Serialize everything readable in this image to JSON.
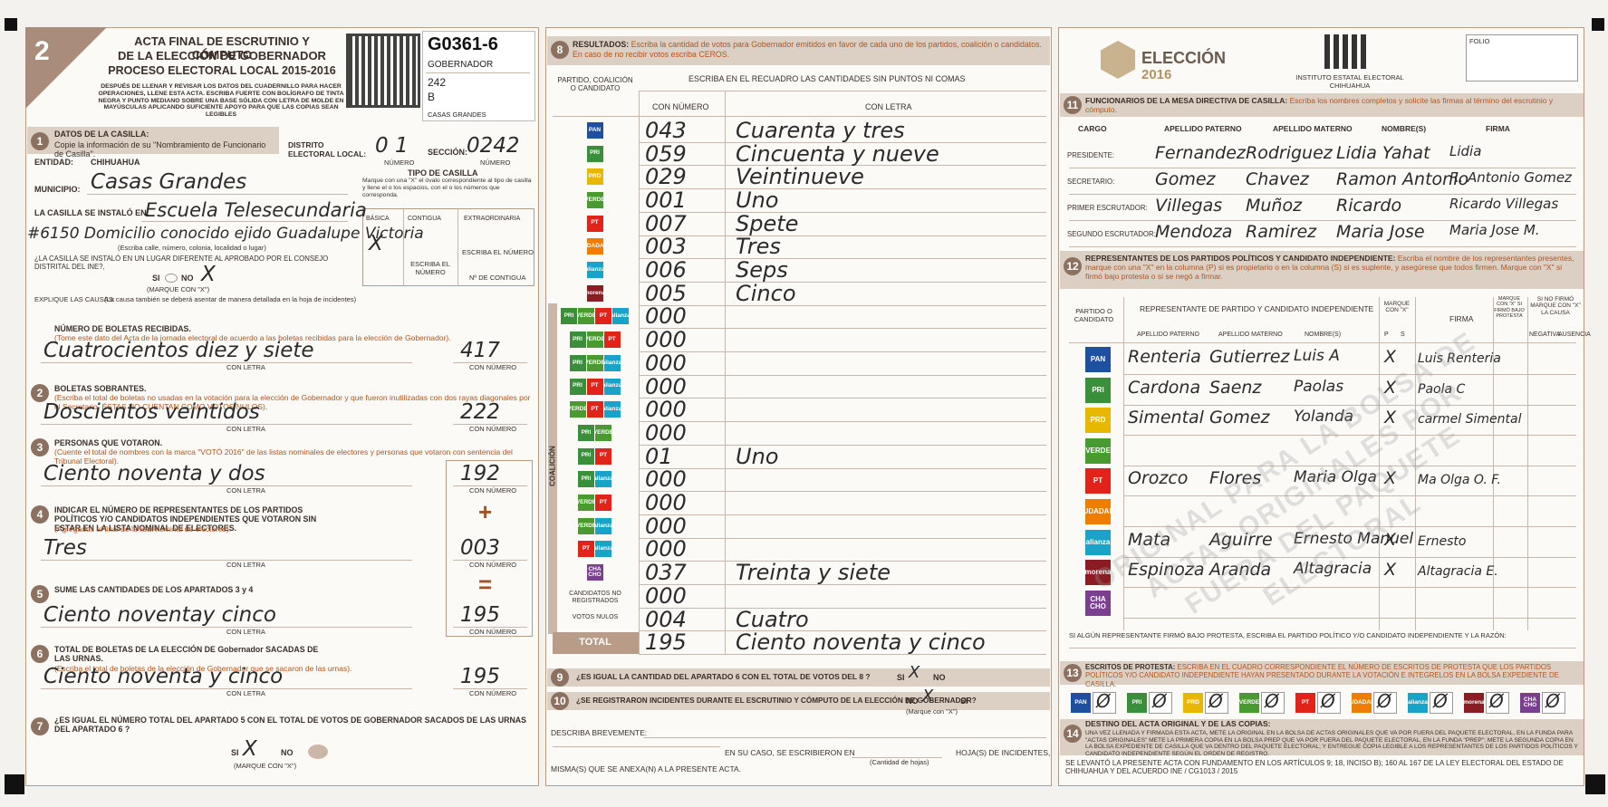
{
  "header": {
    "number": "2",
    "title": "ACTA FINAL DE ESCRUTINIO Y CÓMPUTO",
    "title2": "DE LA ELECCIÓN DE GOBERNADOR",
    "subtitle": "PROCESO ELECTORAL LOCAL 2015-2016",
    "instructions": "DESPUÉS DE LLENAR Y REVISAR LOS DATOS DEL CUADERNILLO PARA HACER OPERACIONES, LLENE ESTA ACTA. ESCRIBA FUERTE CON BOLÍGRAFO DE TINTA NEGRA Y PUNTO MEDIANO SOBRE UNA BASE SÓLIDA CON LETRA DE MOLDE EN MAYÚSCULAS APLICANDO SUFICIENTE APOYO PARA QUE LAS COPIAS SEAN LEGIBLES",
    "code": "G0361-6",
    "election": "GOBERNADOR",
    "section": "242",
    "type": "B",
    "municipality": "CASAS GRANDES"
  },
  "casilla": {
    "number": "1",
    "heading": "DATOS DE LA CASILLA:",
    "instruction": "Copie la información de su \"Nombramiento de Funcionario de Casilla\".",
    "entity_label": "ENTIDAD:",
    "entity": "CHIHUAHUA",
    "district_label": "DISTRITO ELECTORAL LOCAL:",
    "district": "0 1",
    "number_caption": "NÚMERO",
    "section_label": "SECCIÓN:",
    "section": "0242",
    "municipality_label": "MUNICIPIO:",
    "municipality": "Casas Grandes",
    "location_label": "LA CASILLA SE INSTALÓ EN:",
    "location": "Escuela Telesecundaria",
    "address": "#6150 Domicilio conocido ejido Guadalupe Victoria",
    "address_caption": "(Escriba calle, número, colonia, localidad o lugar)",
    "different_place": "¿LA CASILLA SE INSTALÓ EN UN LUGAR DIFERENTE AL APROBADO POR EL CONSEJO DISTRITAL DEL INE?,",
    "yes": "SI",
    "no": "NO",
    "no_mark": "X",
    "mark_caption": "(MARQUE CON \"X\")",
    "explain": "EXPLIQUE LAS CAUSAS:",
    "explain_note": "(La causa también se deberá asentar de manera detallada en la hoja de incidentes)",
    "type_heading": "TIPO DE CASILLA",
    "type_instruction": "Marque con una \"X\" el óvalo correspondiente al tipo de casilla y llene el o los espacios, con el o los números que corresponda.",
    "types": [
      "BÁSICA",
      "CONTIGUA",
      "EXTRAORDINARIA"
    ],
    "type_mark": "X",
    "write_number": "ESCRIBA EL NÚMERO",
    "contigua_number": "Nº DE CONTIGUA"
  },
  "counts": [
    {
      "heading": "NÚMERO DE BOLETAS RECIBIDAS.",
      "note": "(Tome este dato del Acta de la jornada electoral de acuerdo a las boletas recibidas para la elección de Gobernador).",
      "words": "Cuatrocientos diez y siete",
      "digits": "417"
    },
    {
      "number": "2",
      "heading": "BOLETAS SOBRANTES.",
      "note": "(Escriba el total de boletas no usadas en la votación para la elección de Gobernador y que fueron inutilizadas con dos rayas diagonales por el Secretario, ÉSTAS NO CUENTAN COMO VOTOS NULOS).",
      "words": "Doscientos veintidos",
      "digits": "222"
    },
    {
      "number": "3",
      "heading": "PERSONAS QUE VOTARON.",
      "note": "(Cuente el total de nombres con la marca \"VOTÓ 2016\" de las listas nominales de electores y personas que votaron con sentencia del Tribunal Electoral).",
      "words": "Ciento noventa y dos",
      "digits": "192"
    },
    {
      "number": "4",
      "heading": "INDICAR EL NÚMERO DE REPRESENTANTES DE LOS PARTIDOS POLÍTICOS Y/O CANDIDATOS INDEPENDIENTES QUE VOTARON SIN ESTAR EN LA LISTA NOMINAL DE ELECTORES.",
      "note": "(Agregados al final de la lista nominal de electores).",
      "words": "Tres",
      "digits": "003"
    },
    {
      "number": "5",
      "heading": "SUME LAS CANTIDADES DE LOS APARTADOS 3 y 4",
      "words": "Ciento noventay cinco",
      "digits": "195"
    },
    {
      "number": "6",
      "heading": "TOTAL DE BOLETAS DE LA ELECCIÓN DE Gobernador SACADAS DE LAS URNAS.",
      "note": "(Escriba el total de boletas de la elección de Gobernador que se sacaron de las urnas).",
      "words": "Ciento noventa y cinco",
      "digits": "195"
    }
  ],
  "captions": {
    "words": "CON LETRA",
    "digits": "CON NÚMERO",
    "plus": "+",
    "equals": "="
  },
  "check7": {
    "number": "7",
    "question": "¿ES IGUAL EL NÚMERO TOTAL DEL APARTADO 5 CON EL TOTAL DE VOTOS DE GOBERNADOR SACADOS DE LAS URNAS DEL APARTADO 6 ?",
    "yes": "SI",
    "yes_mark": "X",
    "no": "NO",
    "mark_caption": "(MARQUE CON \"X\")"
  },
  "results": {
    "number": "8",
    "heading": "RESULTADOS:",
    "instruction": "Escriba la cantidad de votos para Gobernador emitidos en favor de cada uno de los partidos, coalición o candidatos. En caso de no recibir votos escriba CEROS.",
    "col_party": "PARTIDO, COALICIÓN O CANDIDATO",
    "col_write": "ESCRIBA EN EL RECUADRO LAS CANTIDADES SIN PUNTOS NI COMAS",
    "col_number": "CON NÚMERO",
    "col_words": "CON LETRA",
    "coalition": "COALICIÓN",
    "rows": [
      {
        "logos": [
          "PAN"
        ],
        "number": "043",
        "words": "Cuarenta y tres"
      },
      {
        "logos": [
          "PRI"
        ],
        "number": "059",
        "words": "Cincuenta y nueve"
      },
      {
        "logos": [
          "PRD"
        ],
        "number": "029",
        "words": "Veintinueve"
      },
      {
        "logos": [
          "VERDE"
        ],
        "number": "001",
        "words": "Uno"
      },
      {
        "logos": [
          "PT"
        ],
        "number": "007",
        "words": "Spete"
      },
      {
        "logos": [
          "CIUDADANO"
        ],
        "number": "003",
        "words": "Tres"
      },
      {
        "logos": [
          "alianza"
        ],
        "number": "006",
        "words": "Seps"
      },
      {
        "logos": [
          "morena"
        ],
        "number": "005",
        "words": "Cinco"
      },
      {
        "logos": [
          "PRI",
          "VERDE",
          "PT",
          "alianza"
        ],
        "number": "000"
      },
      {
        "logos": [
          "PRI",
          "VERDE",
          "PT"
        ],
        "number": "000"
      },
      {
        "logos": [
          "PRI",
          "VERDE",
          "alianza"
        ],
        "number": "000"
      },
      {
        "logos": [
          "PRI",
          "PT",
          "alianza"
        ],
        "number": "000"
      },
      {
        "logos": [
          "VERDE",
          "PT",
          "alianza"
        ],
        "number": "000"
      },
      {
        "logos": [
          "PRI",
          "VERDE"
        ],
        "number": "000"
      },
      {
        "logos": [
          "PRI",
          "PT"
        ],
        "number": "01",
        "words": "Uno"
      },
      {
        "logos": [
          "PRI",
          "alianza"
        ],
        "number": "000"
      },
      {
        "logos": [
          "VERDE",
          "PT"
        ],
        "number": "000"
      },
      {
        "logos": [
          "VERDE",
          "alianza"
        ],
        "number": "000"
      },
      {
        "logos": [
          "PT",
          "alianza"
        ],
        "number": "000"
      },
      {
        "logos": [
          "CHA CHO"
        ],
        "number": "037",
        "words": "Treinta y siete"
      },
      {
        "label": "CANDIDATOS NO REGISTRADOS",
        "number": "000"
      },
      {
        "label": "VOTOS NULOS",
        "number": "004",
        "words": "Cuatro"
      },
      {
        "label": "TOTAL",
        "number": "195",
        "words": "Ciento noventa y cinco"
      }
    ]
  },
  "logo_colors": {
    "PAN": "#1f4fa0",
    "PRI": "#3a8f3a",
    "PRD": "#e8b800",
    "VERDE": "#4a9b2f",
    "PT": "#e2231a",
    "CIUDADANO": "#ef7d00",
    "alianza": "#1aa3c9",
    "morena": "#8b1c24",
    "CHA CHO": "#7a3f8f"
  },
  "check9": {
    "number": "9",
    "question": "¿ES IGUAL LA CANTIDAD DEL APARTADO 6 CON EL TOTAL DE VOTOS DEL 8 ?",
    "yes": "SI",
    "yes_mark": "X",
    "no": "NO"
  },
  "check10": {
    "number": "10",
    "question": "¿SE REGISTRARON INCIDENTES DURANTE EL ESCRUTINIO Y CÓMPUTO DE LA ELECCIÓN DE GOBERNADOR?",
    "no": "NO",
    "no_mark": "X",
    "yes": "SI",
    "mark_caption": "(Marque con \"X\")",
    "describe": "DESCRIBA BREVEMENTE:",
    "sheets": "EN SU CASO, SE ESCRIBIERON EN",
    "sheets_caption": "(Cantidad de hojas)",
    "sheets_after": "HOJA(S) DE INCIDENTES,",
    "annex": "MISMA(S) QUE SE ANEXA(N) A LA PRESENTE ACTA."
  },
  "brand": {
    "election": "ELECCIÓN",
    "year": "2016",
    "institute": "INSTITUTO ESTATAL ELECTORAL CHIHUAHUA",
    "folio": "FOLIO"
  },
  "officials": {
    "number": "11",
    "heading": "FUNCIONARIOS DE LA MESA DIRECTIVA DE CASILLA:",
    "instruction": "Escriba los nombres completos y solicite las firmas al término del escrutinio y cómputo.",
    "columns": [
      "CARGO",
      "APELLIDO PATERNO",
      "APELLIDO MATERNO",
      "NOMBRE(S)",
      "FIRMA"
    ],
    "rows": [
      [
        "PRESIDENTE:",
        "Fernandez",
        "Rodriguez",
        "Lidia Yahat",
        "Lidia"
      ],
      [
        "SECRETARIO:",
        "Gomez",
        "Chavez",
        "Ramon Antonio",
        "R. Antonio Gomez"
      ],
      [
        "PRIMER ESCRUTADOR:",
        "Villegas",
        "Muñoz",
        "Ricardo",
        "Ricardo Villegas"
      ],
      [
        "SEGUNDO ESCRUTADOR:",
        "Mendoza",
        "Ramirez",
        "Maria Jose",
        "Maria Jose M."
      ]
    ]
  },
  "representatives": {
    "number": "12",
    "heading": "REPRESENTANTES DE LOS PARTIDOS POLÍTICOS Y CANDIDATO INDEPENDIENTE:",
    "instruction": "Escriba el nombre de los representantes presentes, marque con una \"X\" en la columna (P) si es propietario o en la columna (S) si es suplente, y asegúrese que todos firmen. Marque con \"X\" si firmó bajo protesta o si se negó a firmar.",
    "col_party": "PARTIDO O CANDIDATO",
    "col_rep": "REPRESENTANTE DE PARTIDO Y CANDIDATO INDEPENDIENTE",
    "col_mark": "MARQUE CON \"X\"",
    "col_sign": "FIRMA",
    "col_protest": "MARQUE CON \"X\" SI FIRMÓ BAJO PROTESTA",
    "col_refused": "SI NO FIRMÓ MARQUE CON \"X\" LA CAUSA",
    "sub": [
      "APELLIDO PATERNO",
      "APELLIDO MATERNO",
      "NOMBRE(S)",
      "P",
      "S",
      "NEGATIVA",
      "AUSENCIA"
    ],
    "rows": [
      {
        "logo": "PAN",
        "paterno": "Renteria",
        "materno": "Gutierrez",
        "nombre": "Luis A",
        "mark": "X",
        "firma": "Luis Renteria"
      },
      {
        "logo": "PRI",
        "paterno": "Cardona",
        "materno": "Saenz",
        "nombre": "Paolas",
        "mark": "X",
        "firma": "Paola C"
      },
      {
        "logo": "PRD",
        "paterno": "Simental",
        "materno": "Gomez",
        "nombre": "Yolanda",
        "mark": "X",
        "firma": "carmel Simental"
      },
      {
        "logo": "VERDE"
      },
      {
        "logo": "PT",
        "paterno": "Orozco",
        "materno": "Flores",
        "nombre": "Maria Olga",
        "mark": "X",
        "firma": "Ma Olga O. F."
      },
      {
        "logo": "CIUDADANO"
      },
      {
        "logo": "alianza",
        "paterno": "Mata",
        "materno": "Aguirre",
        "nombre": "Ernesto Manuel",
        "mark": "X",
        "firma": "Ernesto"
      },
      {
        "logo": "morena",
        "paterno": "Espinoza",
        "materno": "Aranda",
        "nombre": "Altagracia",
        "mark": "X",
        "firma": "Altagracia E."
      },
      {
        "logo": "CHA CHO"
      }
    ],
    "protest_note": "SI ALGÚN REPRESENTANTE FIRMÓ BAJO PROTESTA, ESCRIBA EL PARTIDO POLÍTICO Y/O CANDIDATO INDEPENDIENTE Y LA RAZÓN:"
  },
  "protests": {
    "number": "13",
    "heading": "ESCRITOS DE PROTESTA:",
    "instruction": "ESCRIBA EN EL CUADRO CORRESPONDIENTE EL NÚMERO DE ESCRITOS DE PROTESTA QUE LOS PARTIDOS POLÍTICOS Y/O CANDIDATO INDEPENDIENTE HAYAN PRESENTADO DURANTE LA VOTACIÓN E INTEGRELOS EN LA BOLSA EXPEDIENTE DE CASILLA.",
    "entries": [
      {
        "logo": "PAN",
        "value": "Ø"
      },
      {
        "logo": "PRI",
        "value": "Ø"
      },
      {
        "logo": "PRD",
        "value": "Ø"
      },
      {
        "logo": "VERDE",
        "value": "Ø"
      },
      {
        "logo": "PT",
        "value": "Ø"
      },
      {
        "logo": "CIUDADANO",
        "value": "Ø"
      },
      {
        "logo": "alianza",
        "value": "Ø"
      },
      {
        "logo": "morena",
        "value": "Ø"
      },
      {
        "logo": "CHA CHO",
        "value": "Ø"
      }
    ]
  },
  "destination": {
    "number": "14",
    "heading": "DESTINO DEL ACTA ORIGINAL Y DE LAS COPIAS:",
    "text": "UNA VEZ LLENADA Y FIRMADA ESTA ACTA, METE LA ORIGINAL EN LA BOLSA DE ACTAS ORIGINALES QUE VA POR FUERA DEL PAQUETE ELECTORAL, EN LA FUNDA PARA \"ACTAS ORIGINALES\" METE LA PRIMERA COPIA EN LA BOLSA PREP QUE VA POR FUERA DEL PAQUETE ELECTORAL, EN LA FUNDA \"PREP\"; METE LA SEGUNDA COPIA EN LA BOLSA EXPEDIENTE DE CASILLA QUE VA DENTRO DEL PAQUETE ELECTORAL; Y ENTREGUE COPIA LEGIBLE A LOS REPRESENTANTES DE LOS PARTIDOS POLÍTICOS Y CANDIDATO INDEPENDIENTE SEGÚN EL ORDEN DE REGISTRO."
  },
  "footer": "SE LEVANTÓ LA PRESENTE ACTA CON FUNDAMENTO EN LOS ARTÍCULOS 9; 18, INCISO B); 160 AL 167 DE LA LEY ELECTORAL DEL ESTADO DE CHIHUAHUA Y DEL ACUERDO INE / CG1013 / 2015",
  "watermark": "ORIGINAL PARA LA BOLSA DE ACTAS ORIGINALES POR FUERA DEL PAQUETE ELECTORAL"
}
